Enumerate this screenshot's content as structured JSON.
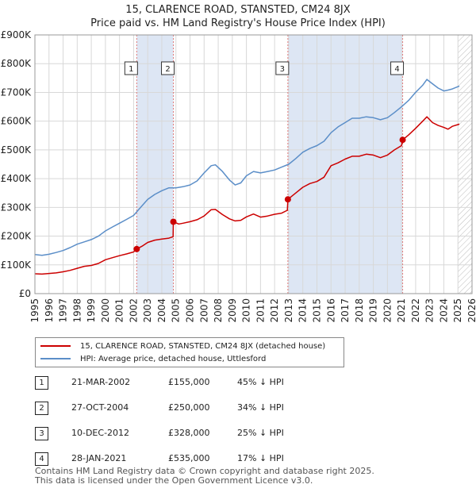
{
  "title": {
    "line1": "15, CLARENCE ROAD, STANSTED, CM24 8JX",
    "line2": "Price paid vs. HM Land Registry's House Price Index (HPI)"
  },
  "colors": {
    "price_paid": "#cc0000",
    "hpi": "#5b8ec8",
    "shade": "#dde6f4",
    "grid": "#d8d8d8",
    "marker_line": "#e07a7a"
  },
  "chart_data": {
    "type": "line",
    "title": "Price paid vs. HM Land Registry's House Price Index (HPI)",
    "xlabel": "",
    "ylabel": "",
    "xlim": [
      1995,
      2026
    ],
    "ylim": [
      0,
      900000
    ],
    "x_ticks": [
      "1995",
      "1996",
      "1997",
      "1998",
      "1999",
      "2000",
      "2001",
      "2002",
      "2003",
      "2004",
      "2005",
      "2006",
      "2007",
      "2008",
      "2009",
      "2010",
      "2011",
      "2012",
      "2013",
      "2014",
      "2015",
      "2016",
      "2017",
      "2018",
      "2019",
      "2020",
      "2021",
      "2022",
      "2023",
      "2024",
      "2025",
      "2026"
    ],
    "y_ticks": [
      {
        "value": 0,
        "label": "£0"
      },
      {
        "value": 100000,
        "label": "£100K"
      },
      {
        "value": 200000,
        "label": "£200K"
      },
      {
        "value": 300000,
        "label": "£300K"
      },
      {
        "value": 400000,
        "label": "£400K"
      },
      {
        "value": 500000,
        "label": "£500K"
      },
      {
        "value": 600000,
        "label": "£600K"
      },
      {
        "value": 700000,
        "label": "£700K"
      },
      {
        "value": 800000,
        "label": "£800K"
      },
      {
        "value": 900000,
        "label": "£900K"
      }
    ],
    "shaded_ranges": [
      [
        2002.22,
        2004.82
      ],
      [
        2012.94,
        2021.08
      ]
    ],
    "hatched_range": [
      2025.0,
      2026
    ],
    "series": [
      {
        "name": "15, CLARENCE ROAD, STANSTED, CM24 8JX (detached house)",
        "x": [
          1995.0,
          1995.5,
          1996.0,
          1996.5,
          1997.0,
          1997.5,
          1998.0,
          1998.5,
          1999.0,
          1999.5,
          2000.0,
          2000.5,
          2001.0,
          2001.5,
          2002.0,
          2002.22,
          2002.6,
          2003.0,
          2003.5,
          2004.0,
          2004.5,
          2004.8,
          2004.82,
          2005.2,
          2005.5,
          2006.0,
          2006.5,
          2007.0,
          2007.5,
          2007.8,
          2008.3,
          2008.8,
          2009.2,
          2009.6,
          2010.0,
          2010.5,
          2011.0,
          2011.5,
          2012.0,
          2012.5,
          2012.9,
          2012.94,
          2013.5,
          2014.0,
          2014.5,
          2015.0,
          2015.5,
          2016.0,
          2016.5,
          2017.0,
          2017.5,
          2018.0,
          2018.5,
          2019.0,
          2019.5,
          2020.0,
          2020.5,
          2021.0,
          2021.08,
          2021.5,
          2022.0,
          2022.5,
          2022.8,
          2023.2,
          2023.6,
          2024.0,
          2024.3,
          2024.6,
          2025.0,
          2025.1
        ],
        "values": [
          69000,
          68000,
          70000,
          72000,
          76000,
          81000,
          88000,
          95000,
          98000,
          105000,
          118000,
          125000,
          132000,
          138000,
          145000,
          155000,
          165000,
          178000,
          186000,
          190000,
          193000,
          198000,
          250000,
          242000,
          245000,
          250000,
          257000,
          270000,
          292000,
          293000,
          275000,
          260000,
          253000,
          255000,
          267000,
          277000,
          266000,
          270000,
          276000,
          280000,
          290000,
          328000,
          350000,
          370000,
          383000,
          390000,
          405000,
          445000,
          455000,
          468000,
          478000,
          478000,
          485000,
          482000,
          473000,
          482000,
          500000,
          515000,
          535000,
          552000,
          575000,
          600000,
          615000,
          595000,
          585000,
          578000,
          572000,
          582000,
          588000,
          590000
        ]
      },
      {
        "name": "HPI: Average price, detached house, Uttlesford",
        "x": [
          1995.0,
          1995.5,
          1996.0,
          1996.5,
          1997.0,
          1997.5,
          1998.0,
          1998.5,
          1999.0,
          1999.5,
          2000.0,
          2000.5,
          2001.0,
          2001.5,
          2002.0,
          2002.5,
          2003.0,
          2003.5,
          2004.0,
          2004.5,
          2005.0,
          2005.5,
          2006.0,
          2006.5,
          2007.0,
          2007.5,
          2007.8,
          2008.3,
          2008.8,
          2009.2,
          2009.6,
          2010.0,
          2010.5,
          2011.0,
          2011.5,
          2012.0,
          2012.5,
          2013.0,
          2013.5,
          2014.0,
          2014.5,
          2015.0,
          2015.5,
          2016.0,
          2016.5,
          2017.0,
          2017.5,
          2018.0,
          2018.5,
          2019.0,
          2019.5,
          2020.0,
          2020.5,
          2021.0,
          2021.5,
          2022.0,
          2022.5,
          2022.8,
          2023.2,
          2023.6,
          2024.0,
          2024.3,
          2024.6,
          2025.0,
          2025.1
        ],
        "values": [
          136000,
          133000,
          137000,
          143000,
          150000,
          160000,
          172000,
          180000,
          188000,
          200000,
          218000,
          232000,
          245000,
          258000,
          272000,
          300000,
          328000,
          345000,
          358000,
          368000,
          368000,
          372000,
          378000,
          392000,
          420000,
          445000,
          448000,
          425000,
          395000,
          378000,
          385000,
          410000,
          425000,
          420000,
          425000,
          430000,
          440000,
          450000,
          470000,
          492000,
          505000,
          515000,
          530000,
          560000,
          580000,
          595000,
          610000,
          610000,
          615000,
          612000,
          605000,
          612000,
          630000,
          650000,
          672000,
          700000,
          725000,
          745000,
          730000,
          715000,
          705000,
          708000,
          712000,
          720000,
          722000
        ]
      }
    ],
    "sales": [
      {
        "marker": "1",
        "x": 2002.22,
        "price": 155000
      },
      {
        "marker": "2",
        "x": 2004.82,
        "price": 250000
      },
      {
        "marker": "3",
        "x": 2012.94,
        "price": 328000
      },
      {
        "marker": "4",
        "x": 2021.08,
        "price": 535000
      }
    ]
  },
  "legend": {
    "price_paid": "15, CLARENCE ROAD, STANSTED, CM24 8JX (detached house)",
    "hpi": "HPI: Average price, detached house, Uttlesford"
  },
  "sales_table": [
    {
      "num": "1",
      "date": "21-MAR-2002",
      "price": "£155,000",
      "hpi": "45% ↓ HPI"
    },
    {
      "num": "2",
      "date": "27-OCT-2004",
      "price": "£250,000",
      "hpi": "34% ↓ HPI"
    },
    {
      "num": "3",
      "date": "10-DEC-2012",
      "price": "£328,000",
      "hpi": "25% ↓ HPI"
    },
    {
      "num": "4",
      "date": "28-JAN-2021",
      "price": "£535,000",
      "hpi": "17% ↓ HPI"
    }
  ],
  "footer": {
    "line1": "Contains HM Land Registry data © Crown copyright and database right 2025.",
    "line2": "This data is licensed under the Open Government Licence v3.0."
  }
}
